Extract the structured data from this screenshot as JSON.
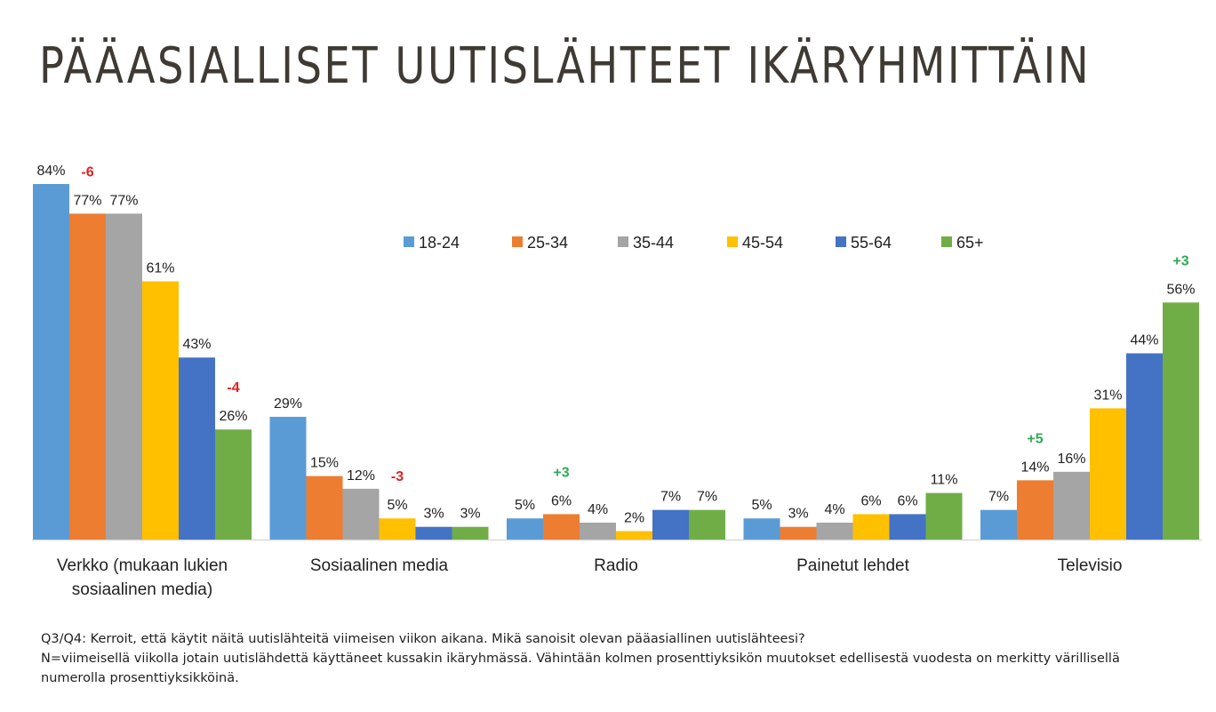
{
  "title": "PÄÄASIALLISET UUTISLÄHTEET IKÄRYHMITTÄIN",
  "notes": {
    "line1": "Q3/Q4: Kerroit, että käytit näitä uutislähteitä viimeisen viikon aikana. Mikä sanoisit olevan pääasiallinen uutislähteesi?",
    "line2": "N=viimeisellä viikolla jotain uutislähdettä käyttäneet kussakin ikäryhmässä. Vähintään kolmen prosenttiyksikön muutokset edellisestä vuodesta on merkitty värillisellä",
    "line3": "numerolla prosenttiyksikköinä."
  },
  "chart_data": {
    "type": "bar",
    "categories": [
      [
        "Verkko (mukaan lukien",
        "sosiaalinen media)"
      ],
      [
        "Sosiaalinen media"
      ],
      [
        "Radio"
      ],
      [
        "Painetut lehdet"
      ],
      [
        "Televisio"
      ]
    ],
    "series": [
      {
        "name": "18-24",
        "color": "#5b9bd5",
        "values": [
          84,
          29,
          5,
          5,
          7
        ],
        "labels": [
          "84%",
          "29%",
          "5%",
          "5%",
          "7%"
        ]
      },
      {
        "name": "25-34",
        "color": "#ed7d31",
        "values": [
          77,
          15,
          6,
          3,
          14
        ],
        "labels": [
          "77%",
          "15%",
          "6%",
          "3%",
          "14%"
        ]
      },
      {
        "name": "35-44",
        "color": "#a5a5a5",
        "values": [
          77,
          12,
          4,
          4,
          16
        ],
        "labels": [
          "77%",
          "12%",
          "4%",
          "4%",
          "16%"
        ]
      },
      {
        "name": "45-54",
        "color": "#ffc000",
        "values": [
          61,
          5,
          2,
          6,
          31
        ],
        "labels": [
          "61%",
          "5%",
          "2%",
          "6%",
          "31%"
        ]
      },
      {
        "name": "55-64",
        "color": "#4472c4",
        "values": [
          43,
          3,
          7,
          6,
          44
        ],
        "labels": [
          "43%",
          "3%",
          "7%",
          "6%",
          "44%"
        ]
      },
      {
        "name": "65+",
        "color": "#70ad47",
        "values": [
          26,
          3,
          7,
          11,
          56
        ],
        "labels": [
          "26%",
          "3%",
          "7%",
          "11%",
          "56%"
        ]
      }
    ],
    "changes": [
      {
        "category": 0,
        "series": 1,
        "text": "-6",
        "color": "#e02020"
      },
      {
        "category": 0,
        "series": 5,
        "text": "-4",
        "color": "#e02020"
      },
      {
        "category": 1,
        "series": 3,
        "text": "-3",
        "color": "#e02020"
      },
      {
        "category": 2,
        "series": 1,
        "text": "+3",
        "color": "#2eaa55"
      },
      {
        "category": 4,
        "series": 1,
        "text": "+5",
        "color": "#2eaa55"
      },
      {
        "category": 4,
        "series": 5,
        "text": "+3",
        "color": "#2eaa55"
      }
    ],
    "ylim": [
      0,
      84
    ],
    "grid": false,
    "legend_position": "top-right"
  }
}
